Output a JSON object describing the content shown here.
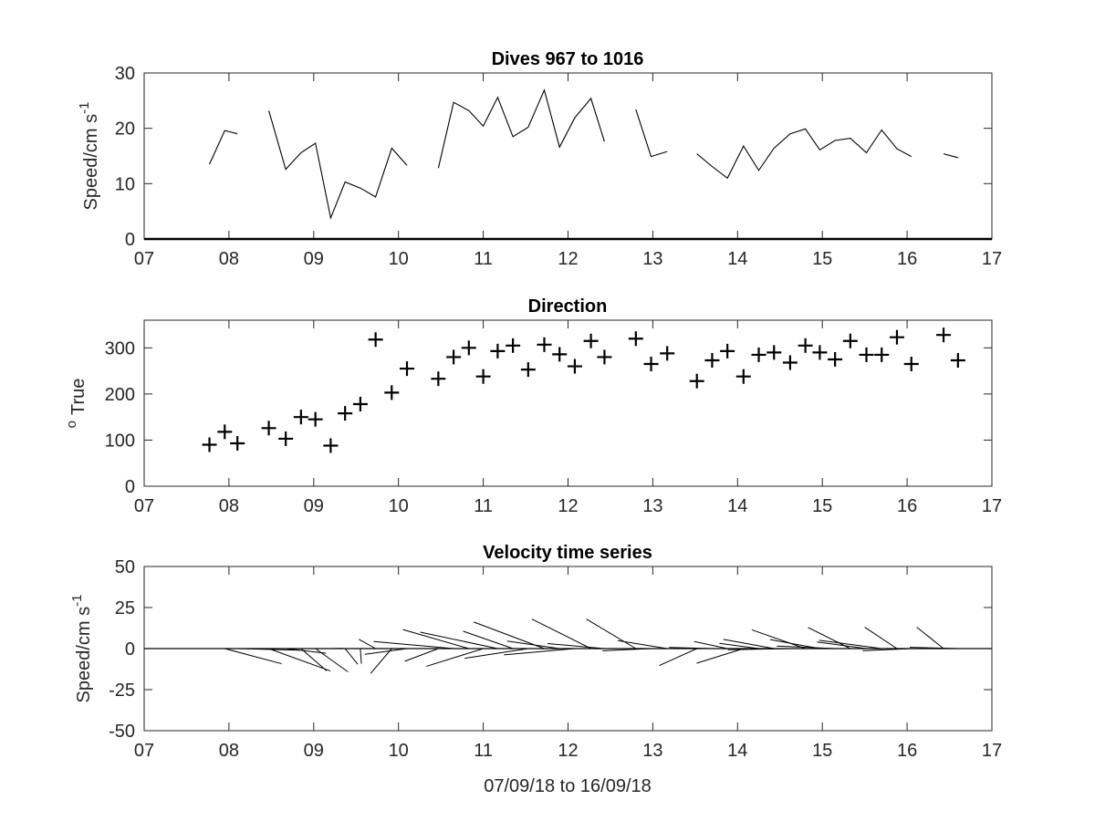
{
  "figure": {
    "xlabel": "07/09/18 to 16/09/18"
  },
  "chart_data": [
    {
      "type": "line",
      "title": "Dives 967 to 1016",
      "ylabel": "Speed/cm s",
      "ylabel_superscript": "-1",
      "xlim": [
        7,
        17
      ],
      "ylim": [
        0,
        30
      ],
      "xticks": [
        7,
        8,
        9,
        10,
        11,
        12,
        13,
        14,
        15,
        16,
        17
      ],
      "xtick_labels": [
        "07",
        "08",
        "09",
        "10",
        "11",
        "12",
        "13",
        "14",
        "15",
        "16",
        "17"
      ],
      "yticks": [
        0,
        10,
        20,
        30
      ],
      "ytick_labels": [
        "0",
        "10",
        "20",
        "30"
      ],
      "series": [
        {
          "segments": [
            {
              "x": [
                7.77,
                7.95,
                8.1
              ],
              "y": [
                13.5,
                19.6,
                19.0
              ]
            },
            {
              "x": [
                8.47,
                8.67,
                8.85,
                9.02,
                9.2,
                9.37,
                9.55,
                9.73,
                9.92,
                10.1
              ],
              "y": [
                23.2,
                12.6,
                15.6,
                17.3,
                3.8,
                10.3,
                9.2,
                7.6,
                16.4,
                13.3
              ]
            },
            {
              "x": [
                10.47,
                10.65,
                10.83,
                11.0,
                11.17,
                11.35,
                11.53,
                11.72,
                11.9,
                12.08,
                12.27,
                12.43
              ],
              "y": [
                12.8,
                24.7,
                23.2,
                20.4,
                25.6,
                18.5,
                20.2,
                26.9,
                16.6,
                21.9,
                25.4,
                17.6
              ]
            },
            {
              "x": [
                12.8,
                12.98,
                13.17
              ],
              "y": [
                23.4,
                14.9,
                15.8
              ]
            },
            {
              "x": [
                13.52,
                13.7,
                13.88,
                14.07,
                14.25,
                14.43,
                14.62,
                14.8,
                14.97,
                15.15,
                15.33,
                15.52,
                15.7,
                15.88,
                16.05
              ],
              "y": [
                15.4,
                13.1,
                11.0,
                16.8,
                12.4,
                16.4,
                19.0,
                19.9,
                16.1,
                17.8,
                18.2,
                15.6,
                19.7,
                16.3,
                14.9
              ]
            },
            {
              "x": [
                16.43,
                16.6
              ],
              "y": [
                15.4,
                14.7
              ]
            }
          ]
        }
      ],
      "baseline": 0
    },
    {
      "type": "scatter",
      "title": "Direction",
      "ylabel": "True",
      "ylabel_prefix": "o",
      "marker": "+",
      "xlim": [
        7,
        17
      ],
      "ylim": [
        0,
        360
      ],
      "xticks": [
        7,
        8,
        9,
        10,
        11,
        12,
        13,
        14,
        15,
        16,
        17
      ],
      "xtick_labels": [
        "07",
        "08",
        "09",
        "10",
        "11",
        "12",
        "13",
        "14",
        "15",
        "16",
        "17"
      ],
      "yticks": [
        0,
        100,
        200,
        300
      ],
      "ytick_labels": [
        "0",
        "100",
        "200",
        "300"
      ],
      "x": [
        7.77,
        7.95,
        8.1,
        8.47,
        8.67,
        8.85,
        9.02,
        9.2,
        9.37,
        9.55,
        9.73,
        9.92,
        10.1,
        10.47,
        10.65,
        10.83,
        11.0,
        11.17,
        11.35,
        11.53,
        11.72,
        11.9,
        12.08,
        12.27,
        12.43,
        12.8,
        12.98,
        13.17,
        13.52,
        13.7,
        13.88,
        14.07,
        14.25,
        14.43,
        14.62,
        14.8,
        14.97,
        15.15,
        15.33,
        15.52,
        15.7,
        15.88,
        16.05,
        16.43,
        16.6
      ],
      "y": [
        90,
        118,
        93,
        126,
        103,
        150,
        145,
        88,
        158,
        178,
        318,
        203,
        255,
        233,
        280,
        300,
        238,
        293,
        305,
        253,
        307,
        286,
        260,
        315,
        280,
        320,
        265,
        288,
        228,
        273,
        293,
        238,
        285,
        290,
        268,
        305,
        290,
        275,
        315,
        285,
        285,
        323,
        265,
        328,
        273
      ]
    },
    {
      "type": "quiver",
      "title": "Velocity time series",
      "ylabel": "Speed/cm s",
      "ylabel_superscript": "-1",
      "xlim": [
        7,
        17
      ],
      "ylim": [
        -50,
        50
      ],
      "xticks": [
        7,
        8,
        9,
        10,
        11,
        12,
        13,
        14,
        15,
        16,
        17
      ],
      "xtick_labels": [
        "07",
        "08",
        "09",
        "10",
        "11",
        "12",
        "13",
        "14",
        "15",
        "16",
        "17"
      ],
      "yticks": [
        -50,
        -25,
        0,
        25,
        50
      ],
      "ytick_labels": [
        "-50",
        "-25",
        "0",
        "25",
        "50"
      ],
      "baseline": 0,
      "x": [
        7.77,
        7.95,
        8.1,
        8.47,
        8.67,
        8.85,
        9.02,
        9.2,
        9.37,
        9.55,
        9.73,
        9.92,
        10.1,
        10.47,
        10.65,
        10.83,
        11.0,
        11.17,
        11.35,
        11.53,
        11.72,
        11.9,
        12.08,
        12.27,
        12.43,
        12.8,
        12.98,
        13.17,
        13.52,
        13.7,
        13.88,
        14.07,
        14.25,
        14.43,
        14.62,
        14.8,
        14.97,
        15.15,
        15.33,
        15.52,
        15.7,
        15.88,
        16.05,
        16.43,
        16.6
      ],
      "speed": [
        13.5,
        19.6,
        19.0,
        23.2,
        12.6,
        15.6,
        17.3,
        3.8,
        10.3,
        9.2,
        7.6,
        16.4,
        13.3,
        12.8,
        24.7,
        23.2,
        20.4,
        25.6,
        18.5,
        20.2,
        26.9,
        16.6,
        21.9,
        25.4,
        17.6,
        23.4,
        14.9,
        15.8,
        15.4,
        13.1,
        11.0,
        16.8,
        12.4,
        16.4,
        19.0,
        19.9,
        16.1,
        17.8,
        18.2,
        15.6,
        19.7,
        16.3,
        14.9,
        15.4,
        14.7
      ],
      "direction": [
        90,
        118,
        93,
        126,
        103,
        150,
        145,
        88,
        158,
        178,
        318,
        203,
        255,
        233,
        280,
        300,
        238,
        293,
        305,
        253,
        307,
        286,
        260,
        315,
        280,
        320,
        265,
        288,
        228,
        273,
        293,
        238,
        285,
        290,
        268,
        305,
        290,
        275,
        315,
        285,
        285,
        323,
        265,
        328,
        273
      ]
    }
  ]
}
